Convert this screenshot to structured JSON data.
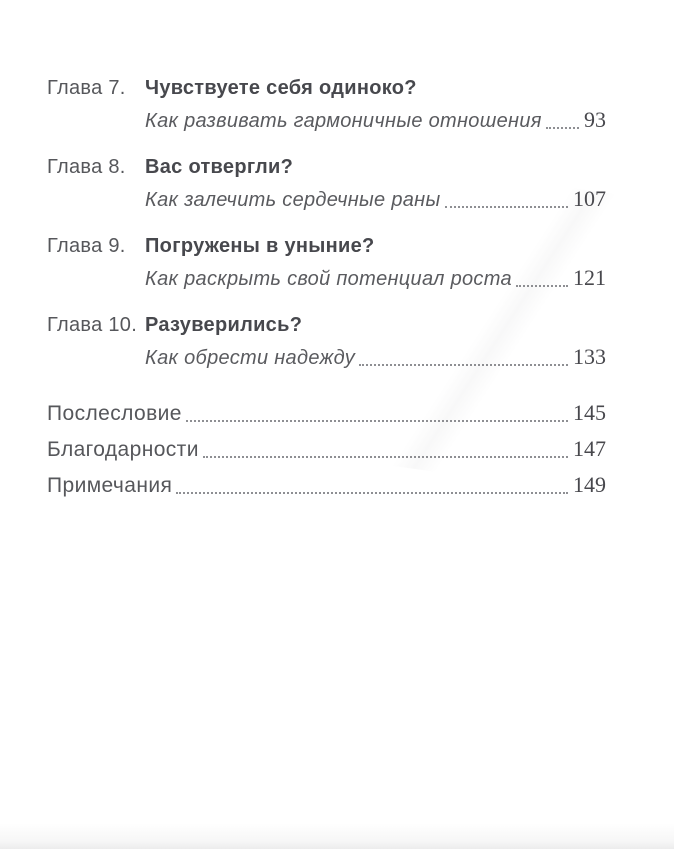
{
  "toc": {
    "chapters": [
      {
        "label": "Глава 7.",
        "title": "Чувствуете себя одиноко?",
        "subtitle": "Как развивать гармоничные отношения",
        "page": "93"
      },
      {
        "label": "Глава 8.",
        "title": "Вас отвергли?",
        "subtitle": "Как залечить сердечные раны",
        "page": "107"
      },
      {
        "label": "Глава 9.",
        "title": "Погружены в уныние?",
        "subtitle": "Как раскрыть свой потенциал роста",
        "page": "121"
      },
      {
        "label": "Глава 10.",
        "title": "Разуверились?",
        "subtitle": "Как обрести надежду",
        "page": "133"
      }
    ],
    "back_matter": [
      {
        "title": "Послесловие",
        "page": "145"
      },
      {
        "title": "Благодарности",
        "page": "147"
      },
      {
        "title": "Примечания",
        "page": "149"
      }
    ]
  },
  "colors": {
    "paper": "#ffffff",
    "text_regular": "#56575b",
    "text_bold": "#47484d",
    "text_italic": "#5a5b5f",
    "page_number": "#48484d",
    "leader_dots": "#8e8f93"
  }
}
